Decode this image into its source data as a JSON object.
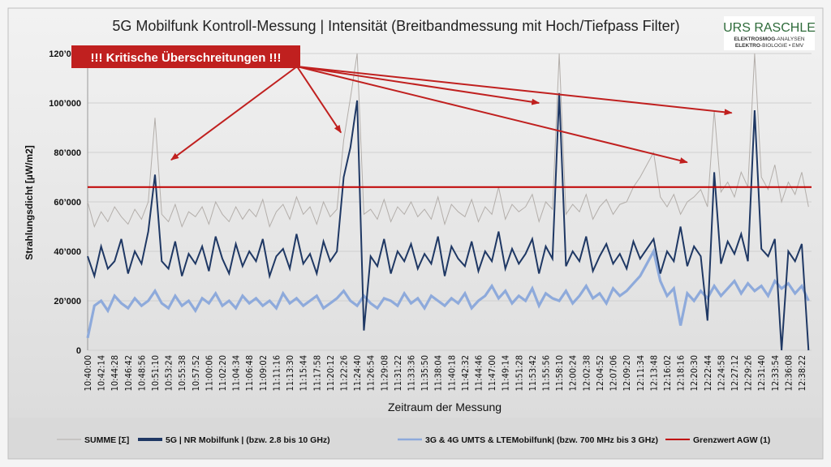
{
  "chart_data": {
    "type": "line",
    "title": "5G Mobilfunk Kontroll-Messung | Intensität (Breitbandmessung mit Hoch/Tiefpass Filter)",
    "xlabel": "Zeitraum der Messung",
    "ylabel": "Strahlungsdicht [µW/m2]",
    "ylim": [
      0,
      120000
    ],
    "yticks": [
      0,
      20000,
      40000,
      60000,
      80000,
      100000,
      120000
    ],
    "ytick_labels": [
      "0",
      "20’000",
      "40’000",
      "60’000",
      "80’000",
      "100’000",
      "120’000"
    ],
    "grid": true,
    "legend_position": "bottom",
    "x_tick_labels": [
      "10:40:00",
      "10:42:14",
      "10:44:28",
      "10:46:42",
      "10:48:56",
      "10:51:10",
      "10:53:24",
      "10:55:38",
      "10:57:52",
      "11:00:06",
      "11:02:20",
      "11:04:34",
      "11:06:48",
      "11:09:02",
      "11:11:16",
      "11:13:30",
      "11:15:44",
      "11:17:58",
      "11:20:12",
      "11:22:26",
      "11:24:40",
      "11:26:54",
      "11:29:08",
      "11:31:22",
      "11:33:36",
      "11:35:50",
      "11:38:04",
      "11:40:18",
      "11:42:32",
      "11:44:46",
      "11:47:00",
      "11:49:14",
      "11:51:28",
      "11:53:42",
      "11:55:56",
      "11:58:10",
      "12:00:24",
      "12:02:38",
      "12:04:52",
      "12:07:06",
      "12:09:20",
      "12:11:34",
      "12:13:48",
      "12:16:02",
      "12:18:16",
      "12:20:30",
      "12:22:44",
      "12:24:58",
      "12:27:12",
      "12:29:26",
      "12:31:40",
      "12:33:54",
      "12:36:08",
      "12:38:22"
    ],
    "x_points_per_tick": 2,
    "series": [
      {
        "name": "SUMME [Σ]",
        "color": "#b3aeaa",
        "values": [
          60000,
          50000,
          56000,
          52000,
          58000,
          54000,
          51000,
          57000,
          53000,
          60000,
          94000,
          55000,
          52000,
          59000,
          50000,
          56000,
          54000,
          58000,
          51000,
          60000,
          55000,
          52000,
          58000,
          53000,
          57000,
          54000,
          61000,
          50000,
          56000,
          59000,
          53000,
          62000,
          55000,
          58000,
          51000,
          60000,
          54000,
          57000,
          85000,
          102000,
          120000,
          55000,
          57000,
          53000,
          61000,
          52000,
          58000,
          55000,
          60000,
          54000,
          57000,
          53000,
          62000,
          51000,
          59000,
          56000,
          54000,
          61000,
          52000,
          58000,
          55000,
          66000,
          53000,
          59000,
          56000,
          58000,
          63000,
          52000,
          60000,
          57000,
          120000,
          55000,
          59000,
          56000,
          63000,
          53000,
          58000,
          61000,
          55000,
          59000,
          60000,
          66000,
          70000,
          75000,
          80000,
          62000,
          58000,
          63000,
          55000,
          60000,
          62000,
          65000,
          58000,
          97000,
          64000,
          68000,
          62000,
          72000,
          66000,
          120000,
          70000,
          65000,
          75000,
          60000,
          68000,
          63000,
          72000,
          58000
        ]
      },
      {
        "name": "5G | NR Mobilfunk | (bzw. 2.8 bis 10 GHz)",
        "color": "#1f3864",
        "values": [
          38000,
          30000,
          42000,
          33000,
          36000,
          45000,
          31000,
          40000,
          35000,
          48000,
          71000,
          36000,
          33000,
          44000,
          30000,
          39000,
          35000,
          42000,
          32000,
          46000,
          37000,
          31000,
          43000,
          34000,
          40000,
          36000,
          45000,
          30000,
          38000,
          41000,
          33000,
          47000,
          35000,
          39000,
          31000,
          44000,
          36000,
          40000,
          70000,
          82000,
          101000,
          8000,
          38000,
          34000,
          45000,
          31000,
          40000,
          36000,
          43000,
          33000,
          39000,
          35000,
          46000,
          30000,
          42000,
          37000,
          34000,
          44000,
          32000,
          40000,
          36000,
          48000,
          33000,
          41000,
          35000,
          39000,
          45000,
          31000,
          42000,
          37000,
          104000,
          34000,
          40000,
          36000,
          46000,
          32000,
          38000,
          43000,
          35000,
          39000,
          33000,
          44000,
          37000,
          41000,
          45000,
          31000,
          40000,
          36000,
          50000,
          34000,
          42000,
          38000,
          12000,
          72000,
          35000,
          44000,
          39000,
          47000,
          36000,
          97000,
          41000,
          38000,
          45000,
          0,
          40000,
          36000,
          43000,
          0
        ]
      },
      {
        "name": "3G & 4G UMTS & LTEMobilfunk| (bzw. 700 MHz bis 3 GHz)",
        "color": "#8eaadb",
        "values": [
          5000,
          18000,
          20000,
          16000,
          22000,
          19000,
          17000,
          21000,
          18000,
          20000,
          24000,
          19000,
          17000,
          22000,
          18000,
          20000,
          16000,
          21000,
          19000,
          23000,
          18000,
          20000,
          17000,
          22000,
          19000,
          21000,
          18000,
          20000,
          17000,
          23000,
          19000,
          21000,
          18000,
          20000,
          22000,
          17000,
          19000,
          21000,
          24000,
          20000,
          18000,
          22000,
          19000,
          17000,
          21000,
          20000,
          18000,
          23000,
          19000,
          21000,
          17000,
          22000,
          20000,
          18000,
          21000,
          19000,
          23000,
          17000,
          20000,
          22000,
          26000,
          21000,
          24000,
          19000,
          22000,
          20000,
          25000,
          18000,
          23000,
          21000,
          20000,
          24000,
          19000,
          22000,
          26000,
          21000,
          23000,
          19000,
          25000,
          22000,
          24000,
          27000,
          30000,
          35000,
          40000,
          28000,
          22000,
          25000,
          10000,
          23000,
          20000,
          24000,
          21000,
          26000,
          22000,
          25000,
          28000,
          23000,
          27000,
          24000,
          26000,
          22000,
          28000,
          25000,
          27000,
          23000,
          26000,
          20000
        ]
      },
      {
        "name": "Grenzwert AGW (1)",
        "color": "#c00000",
        "values": [
          66000
        ]
      }
    ],
    "annotation": {
      "text": "!!! Kritische Überschreitungen !!!",
      "background": "#c0201f",
      "color": "#ffffff"
    }
  },
  "logo": {
    "name": "URS RASCHLE",
    "line1a": "ELEKTROSMOG",
    "line1b": "-ANALYSEN",
    "line2a": "ELEKTRO",
    "line2b": "-BIOLOGIE  •  EMV"
  }
}
